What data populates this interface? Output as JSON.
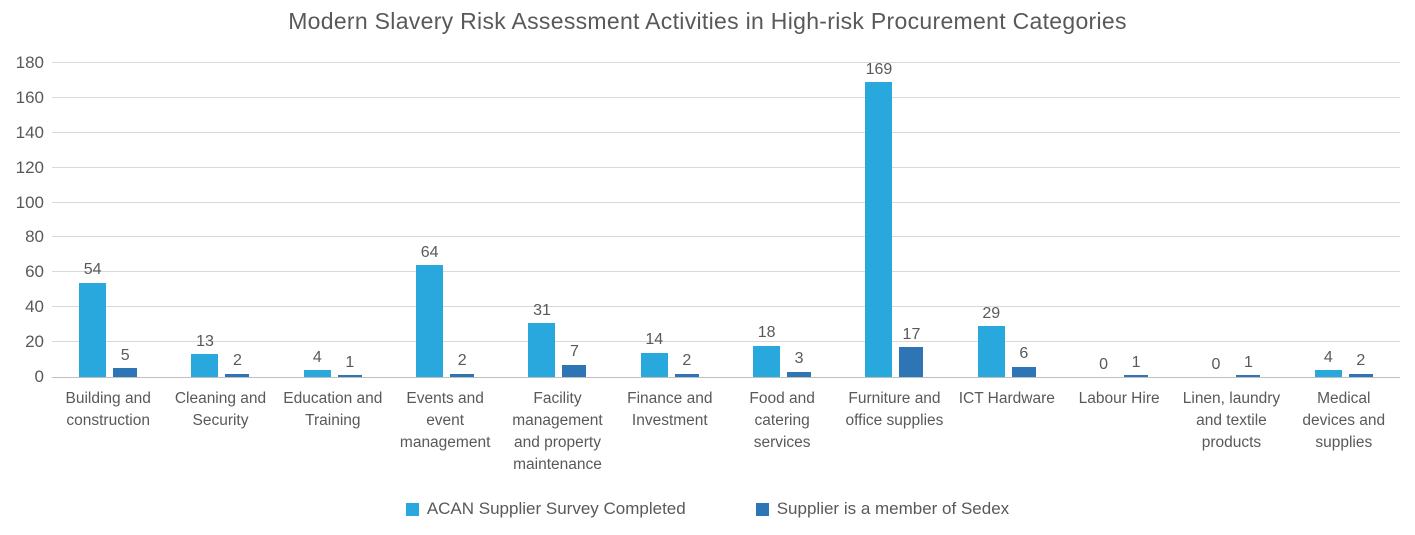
{
  "chart_data": {
    "type": "bar",
    "title": "Modern Slavery Risk Assessment Activities in High-risk Procurement Categories",
    "categories": [
      "Building and construction",
      "Cleaning and Security",
      "Education and Training",
      "Events and event management",
      "Facility management and property maintenance",
      "Finance and Investment",
      "Food and catering services",
      "Furniture and office supplies",
      "ICT Hardware",
      "Labour Hire",
      "Linen, laundry and textile products",
      "Medical devices and supplies"
    ],
    "series": [
      {
        "name": "ACAN Supplier Survey Completed",
        "color": "#29A8DE",
        "values": [
          54,
          13,
          4,
          64,
          31,
          14,
          18,
          169,
          29,
          0,
          0,
          4
        ]
      },
      {
        "name": "Supplier is a member of Sedex",
        "color": "#2E75B6",
        "values": [
          5,
          2,
          1,
          2,
          7,
          2,
          3,
          17,
          6,
          1,
          1,
          2
        ]
      }
    ],
    "xlabel": "",
    "ylabel": "",
    "ylim": [
      0,
      180
    ],
    "yticks": [
      0,
      20,
      40,
      60,
      80,
      100,
      120,
      140,
      160,
      180
    ],
    "grid": true,
    "legend_position": "bottom",
    "colors": {
      "text": "#595959",
      "gridline": "#D9D9D9",
      "axis_line": "#BFBFBF",
      "background": "#FFFFFF"
    }
  }
}
